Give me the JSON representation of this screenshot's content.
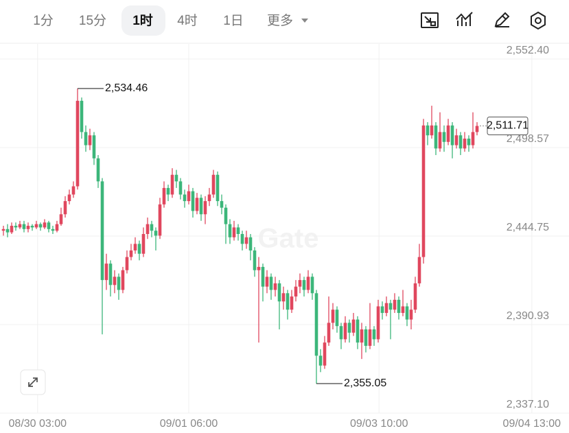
{
  "toolbar": {
    "tabs": [
      "1分",
      "15分",
      "1时",
      "4时",
      "1日"
    ],
    "more": "更多"
  },
  "chart_data": {
    "type": "candlestick",
    "open": [
      2448,
      2449,
      2447,
      2451,
      2450,
      2452,
      2449,
      2451,
      2450,
      2452,
      2450,
      2453,
      2449,
      2448,
      2452,
      2458,
      2466,
      2470,
      2475,
      2527,
      2508,
      2500,
      2506,
      2492,
      2478,
      2418,
      2428,
      2415,
      2420,
      2412,
      2424,
      2432,
      2436,
      2440,
      2434,
      2446,
      2452,
      2448,
      2445,
      2464,
      2474,
      2470,
      2482,
      2478,
      2470,
      2466,
      2472,
      2460,
      2468,
      2458,
      2466,
      2470,
      2482,
      2466,
      2462,
      2452,
      2444,
      2450,
      2446,
      2440,
      2444,
      2436,
      2424,
      2426,
      2414,
      2420,
      2412,
      2416,
      2405,
      2410,
      2400,
      2408,
      2414,
      2418,
      2412,
      2420,
      2410,
      2372,
      2366,
      2380,
      2392,
      2400,
      2390,
      2382,
      2392,
      2386,
      2394,
      2380,
      2388,
      2378,
      2388,
      2382,
      2402,
      2398,
      2404,
      2400,
      2406,
      2398,
      2402,
      2394,
      2400,
      2416,
      2432,
      2512,
      2506,
      2512,
      2498,
      2508,
      2502,
      2512,
      2500,
      2506,
      2498,
      2504,
      2500,
      2508
    ],
    "high": [
      2451,
      2452,
      2453,
      2453,
      2454,
      2454,
      2453,
      2452,
      2454,
      2453,
      2455,
      2454,
      2451,
      2454,
      2462,
      2469,
      2473,
      2478,
      2534.46,
      2529,
      2512,
      2510,
      2508,
      2494,
      2480,
      2434,
      2430,
      2424,
      2422,
      2426,
      2436,
      2440,
      2444,
      2442,
      2450,
      2456,
      2454,
      2450,
      2468,
      2478,
      2476,
      2486,
      2485,
      2480,
      2473,
      2476,
      2474,
      2471,
      2470,
      2469,
      2474,
      2485,
      2484,
      2470,
      2464,
      2455,
      2454,
      2452,
      2448,
      2448,
      2446,
      2438,
      2432,
      2428,
      2424,
      2422,
      2420,
      2418,
      2414,
      2412,
      2412,
      2418,
      2422,
      2420,
      2424,
      2422,
      2412,
      2376,
      2384,
      2408,
      2404,
      2402,
      2392,
      2396,
      2394,
      2398,
      2396,
      2392,
      2390,
      2404,
      2390,
      2406,
      2405,
      2408,
      2406,
      2410,
      2408,
      2412,
      2404,
      2406,
      2420,
      2440,
      2516,
      2514,
      2524,
      2514,
      2520,
      2512,
      2516,
      2514,
      2510,
      2508,
      2508,
      2506,
      2520,
      2514
    ],
    "low": [
      2445,
      2444,
      2446,
      2448,
      2449,
      2447,
      2447,
      2448,
      2449,
      2448,
      2449,
      2447,
      2446,
      2447,
      2451,
      2456,
      2464,
      2468,
      2473,
      2504,
      2496,
      2497,
      2488,
      2474,
      2385,
      2412,
      2408,
      2410,
      2406,
      2410,
      2422,
      2430,
      2434,
      2430,
      2432,
      2443,
      2444,
      2436,
      2443,
      2462,
      2466,
      2468,
      2474,
      2467,
      2462,
      2464,
      2456,
      2458,
      2454,
      2452,
      2463,
      2468,
      2463,
      2458,
      2440,
      2440,
      2442,
      2442,
      2436,
      2437,
      2430,
      2420,
      2380,
      2405,
      2410,
      2406,
      2408,
      2388,
      2400,
      2394,
      2398,
      2405,
      2410,
      2408,
      2410,
      2406,
      2355.05,
      2362,
      2364,
      2378,
      2388,
      2386,
      2376,
      2380,
      2380,
      2384,
      2376,
      2370,
      2374,
      2376,
      2378,
      2380,
      2394,
      2396,
      2382,
      2398,
      2394,
      2396,
      2390,
      2388,
      2398,
      2414,
      2428,
      2500,
      2504,
      2494,
      2496,
      2496,
      2500,
      2492,
      2498,
      2494,
      2496,
      2496,
      2498,
      2506
    ],
    "close": [
      2449,
      2447,
      2451,
      2450,
      2452,
      2449,
      2451,
      2450,
      2452,
      2450,
      2453,
      2449,
      2448,
      2452,
      2458,
      2466,
      2470,
      2475,
      2527,
      2508,
      2500,
      2506,
      2492,
      2478,
      2418,
      2428,
      2415,
      2420,
      2412,
      2424,
      2432,
      2436,
      2440,
      2434,
      2446,
      2452,
      2448,
      2445,
      2464,
      2474,
      2470,
      2482,
      2478,
      2470,
      2466,
      2472,
      2460,
      2468,
      2458,
      2466,
      2470,
      2482,
      2466,
      2462,
      2452,
      2444,
      2450,
      2446,
      2440,
      2444,
      2436,
      2424,
      2426,
      2414,
      2420,
      2412,
      2416,
      2405,
      2410,
      2400,
      2408,
      2414,
      2418,
      2412,
      2420,
      2410,
      2372,
      2366,
      2380,
      2392,
      2400,
      2390,
      2382,
      2392,
      2386,
      2394,
      2380,
      2388,
      2378,
      2388,
      2382,
      2402,
      2398,
      2404,
      2400,
      2406,
      2398,
      2402,
      2394,
      2400,
      2416,
      2432,
      2512,
      2506,
      2512,
      2498,
      2508,
      2502,
      2512,
      2500,
      2506,
      2498,
      2504,
      2500,
      2508,
      2511.71
    ],
    "up_color": "#e0475e",
    "down_color": "#3cb67a",
    "ylim": [
      2337.1,
      2552.4
    ],
    "yticks": [
      {
        "value": 2552.4,
        "label": "2,552.40"
      },
      {
        "value": 2498.57,
        "label": "2,498.57"
      },
      {
        "value": 2444.75,
        "label": "2,444.75"
      },
      {
        "value": 2390.93,
        "label": "2,390.93"
      },
      {
        "value": 2337.1,
        "label": "2,337.10"
      }
    ],
    "xlim": [
      -0.83,
      137.33
    ],
    "xticks": [
      {
        "value": 8.3,
        "label": "08/30 03:00"
      },
      {
        "value": 45,
        "label": "09/01 06:00"
      },
      {
        "value": 91.2,
        "label": "09/03 10:00"
      },
      {
        "value": 128.3,
        "label": "09/04 13:00"
      }
    ],
    "grid": true,
    "annotations": [
      {
        "value": 2534.46,
        "label": "2,534.46"
      },
      {
        "value": 2355.05,
        "label": "2,355.05"
      }
    ],
    "last_price": {
      "value": 2511.71,
      "label": "2,511.71"
    },
    "watermark": "Gate"
  }
}
